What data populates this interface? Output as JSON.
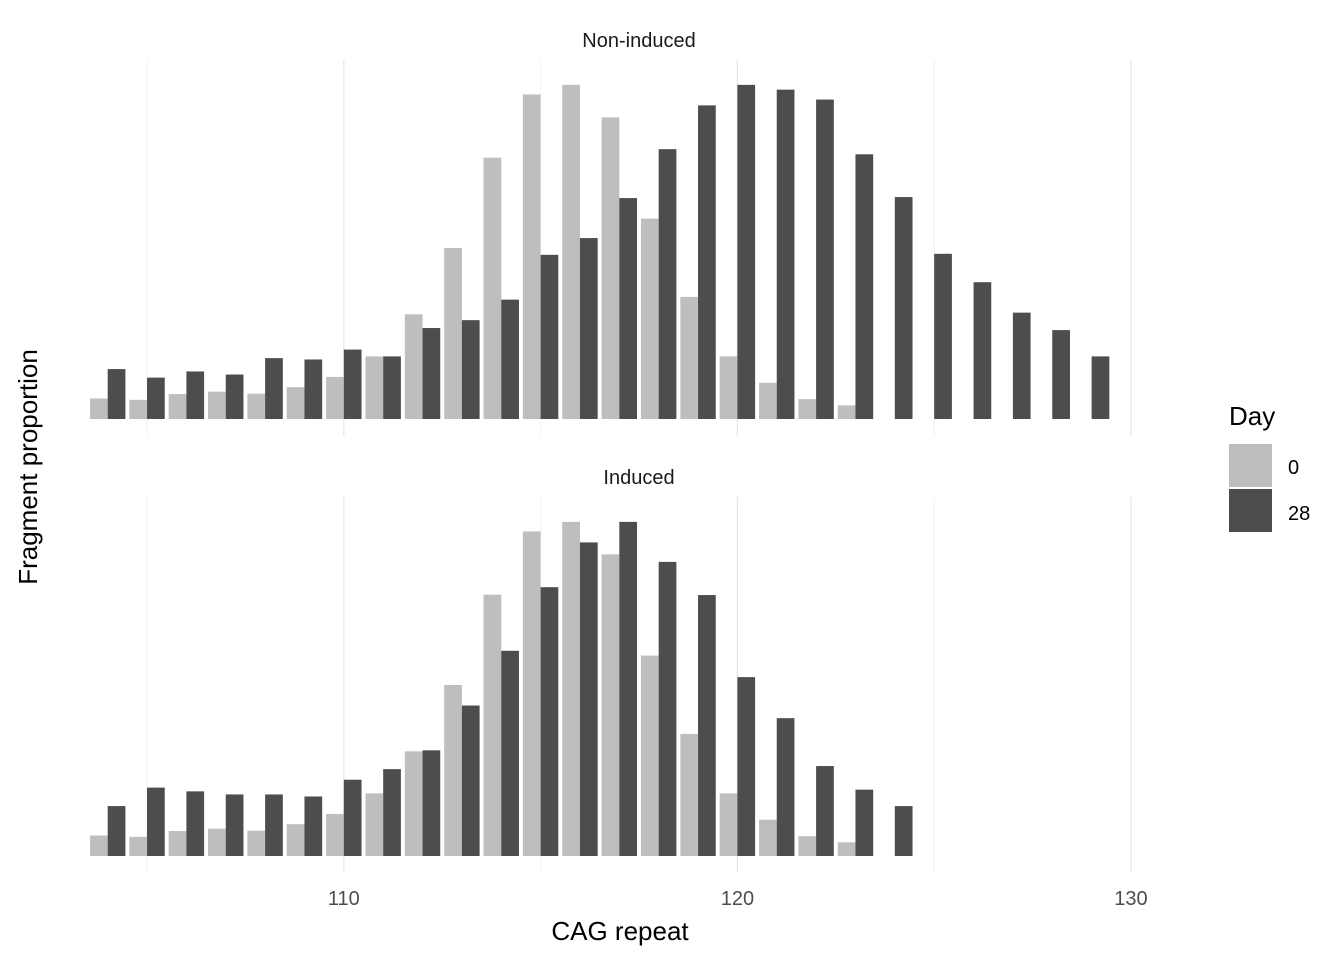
{
  "chart_data": {
    "type": "bar",
    "xlabel": "CAG repeat",
    "ylabel": "Fragment proportion",
    "x_ticks": [
      110,
      120,
      130
    ],
    "xlim": [
      103.5,
      131.5
    ],
    "grid": true,
    "legend": {
      "title": "Day",
      "position": "right",
      "entries": [
        {
          "label": "0",
          "color": "#bebebe"
        },
        {
          "label": "28",
          "color": "#4d4d4d"
        }
      ]
    },
    "panels": [
      {
        "title": "Non-induced",
        "series": [
          {
            "name": "0",
            "color": "#bebebe",
            "x": [
              104,
              105,
              106,
              107,
              108,
              109,
              110,
              111,
              112,
              113,
              114,
              115,
              116,
              117,
              118,
              119,
              120,
              121,
              122,
              123
            ],
            "values": [
              0.06,
              0.056,
              0.073,
              0.08,
              0.074,
              0.093,
              0.123,
              0.183,
              0.306,
              0.5,
              0.764,
              0.949,
              0.977,
              0.882,
              0.586,
              0.357,
              0.183,
              0.106,
              0.058,
              0.04
            ]
          },
          {
            "name": "28",
            "color": "#4d4d4d",
            "x": [
              104,
              105,
              106,
              107,
              108,
              109,
              110,
              111,
              112,
              113,
              114,
              115,
              116,
              117,
              118,
              119,
              120,
              121,
              122,
              123,
              124,
              125,
              126,
              127,
              128,
              129
            ],
            "values": [
              0.146,
              0.121,
              0.139,
              0.13,
              0.178,
              0.174,
              0.203,
              0.183,
              0.266,
              0.289,
              0.349,
              0.48,
              0.529,
              0.646,
              0.789,
              0.917,
              0.977,
              0.963,
              0.934,
              0.774,
              0.649,
              0.483,
              0.4,
              0.311,
              0.26,
              0.183
            ]
          }
        ]
      },
      {
        "title": "Induced",
        "series": [
          {
            "name": "0",
            "color": "#bebebe",
            "x": [
              104,
              105,
              106,
              107,
              108,
              109,
              110,
              111,
              112,
              113,
              114,
              115,
              116,
              117,
              118,
              119,
              120,
              121,
              122,
              123
            ],
            "values": [
              0.06,
              0.056,
              0.073,
              0.08,
              0.074,
              0.093,
              0.123,
              0.183,
              0.306,
              0.5,
              0.764,
              0.949,
              0.977,
              0.882,
              0.586,
              0.357,
              0.183,
              0.106,
              0.058,
              0.04
            ]
          },
          {
            "name": "28",
            "color": "#4d4d4d",
            "x": [
              104,
              105,
              106,
              107,
              108,
              109,
              110,
              111,
              112,
              113,
              114,
              115,
              116,
              117,
              118,
              119,
              120,
              121,
              122,
              123,
              124
            ],
            "values": [
              0.146,
              0.2,
              0.189,
              0.18,
              0.18,
              0.174,
              0.223,
              0.254,
              0.309,
              0.44,
              0.6,
              0.786,
              0.917,
              0.977,
              0.86,
              0.763,
              0.523,
              0.403,
              0.263,
              0.194,
              0.146
            ]
          }
        ]
      }
    ]
  }
}
